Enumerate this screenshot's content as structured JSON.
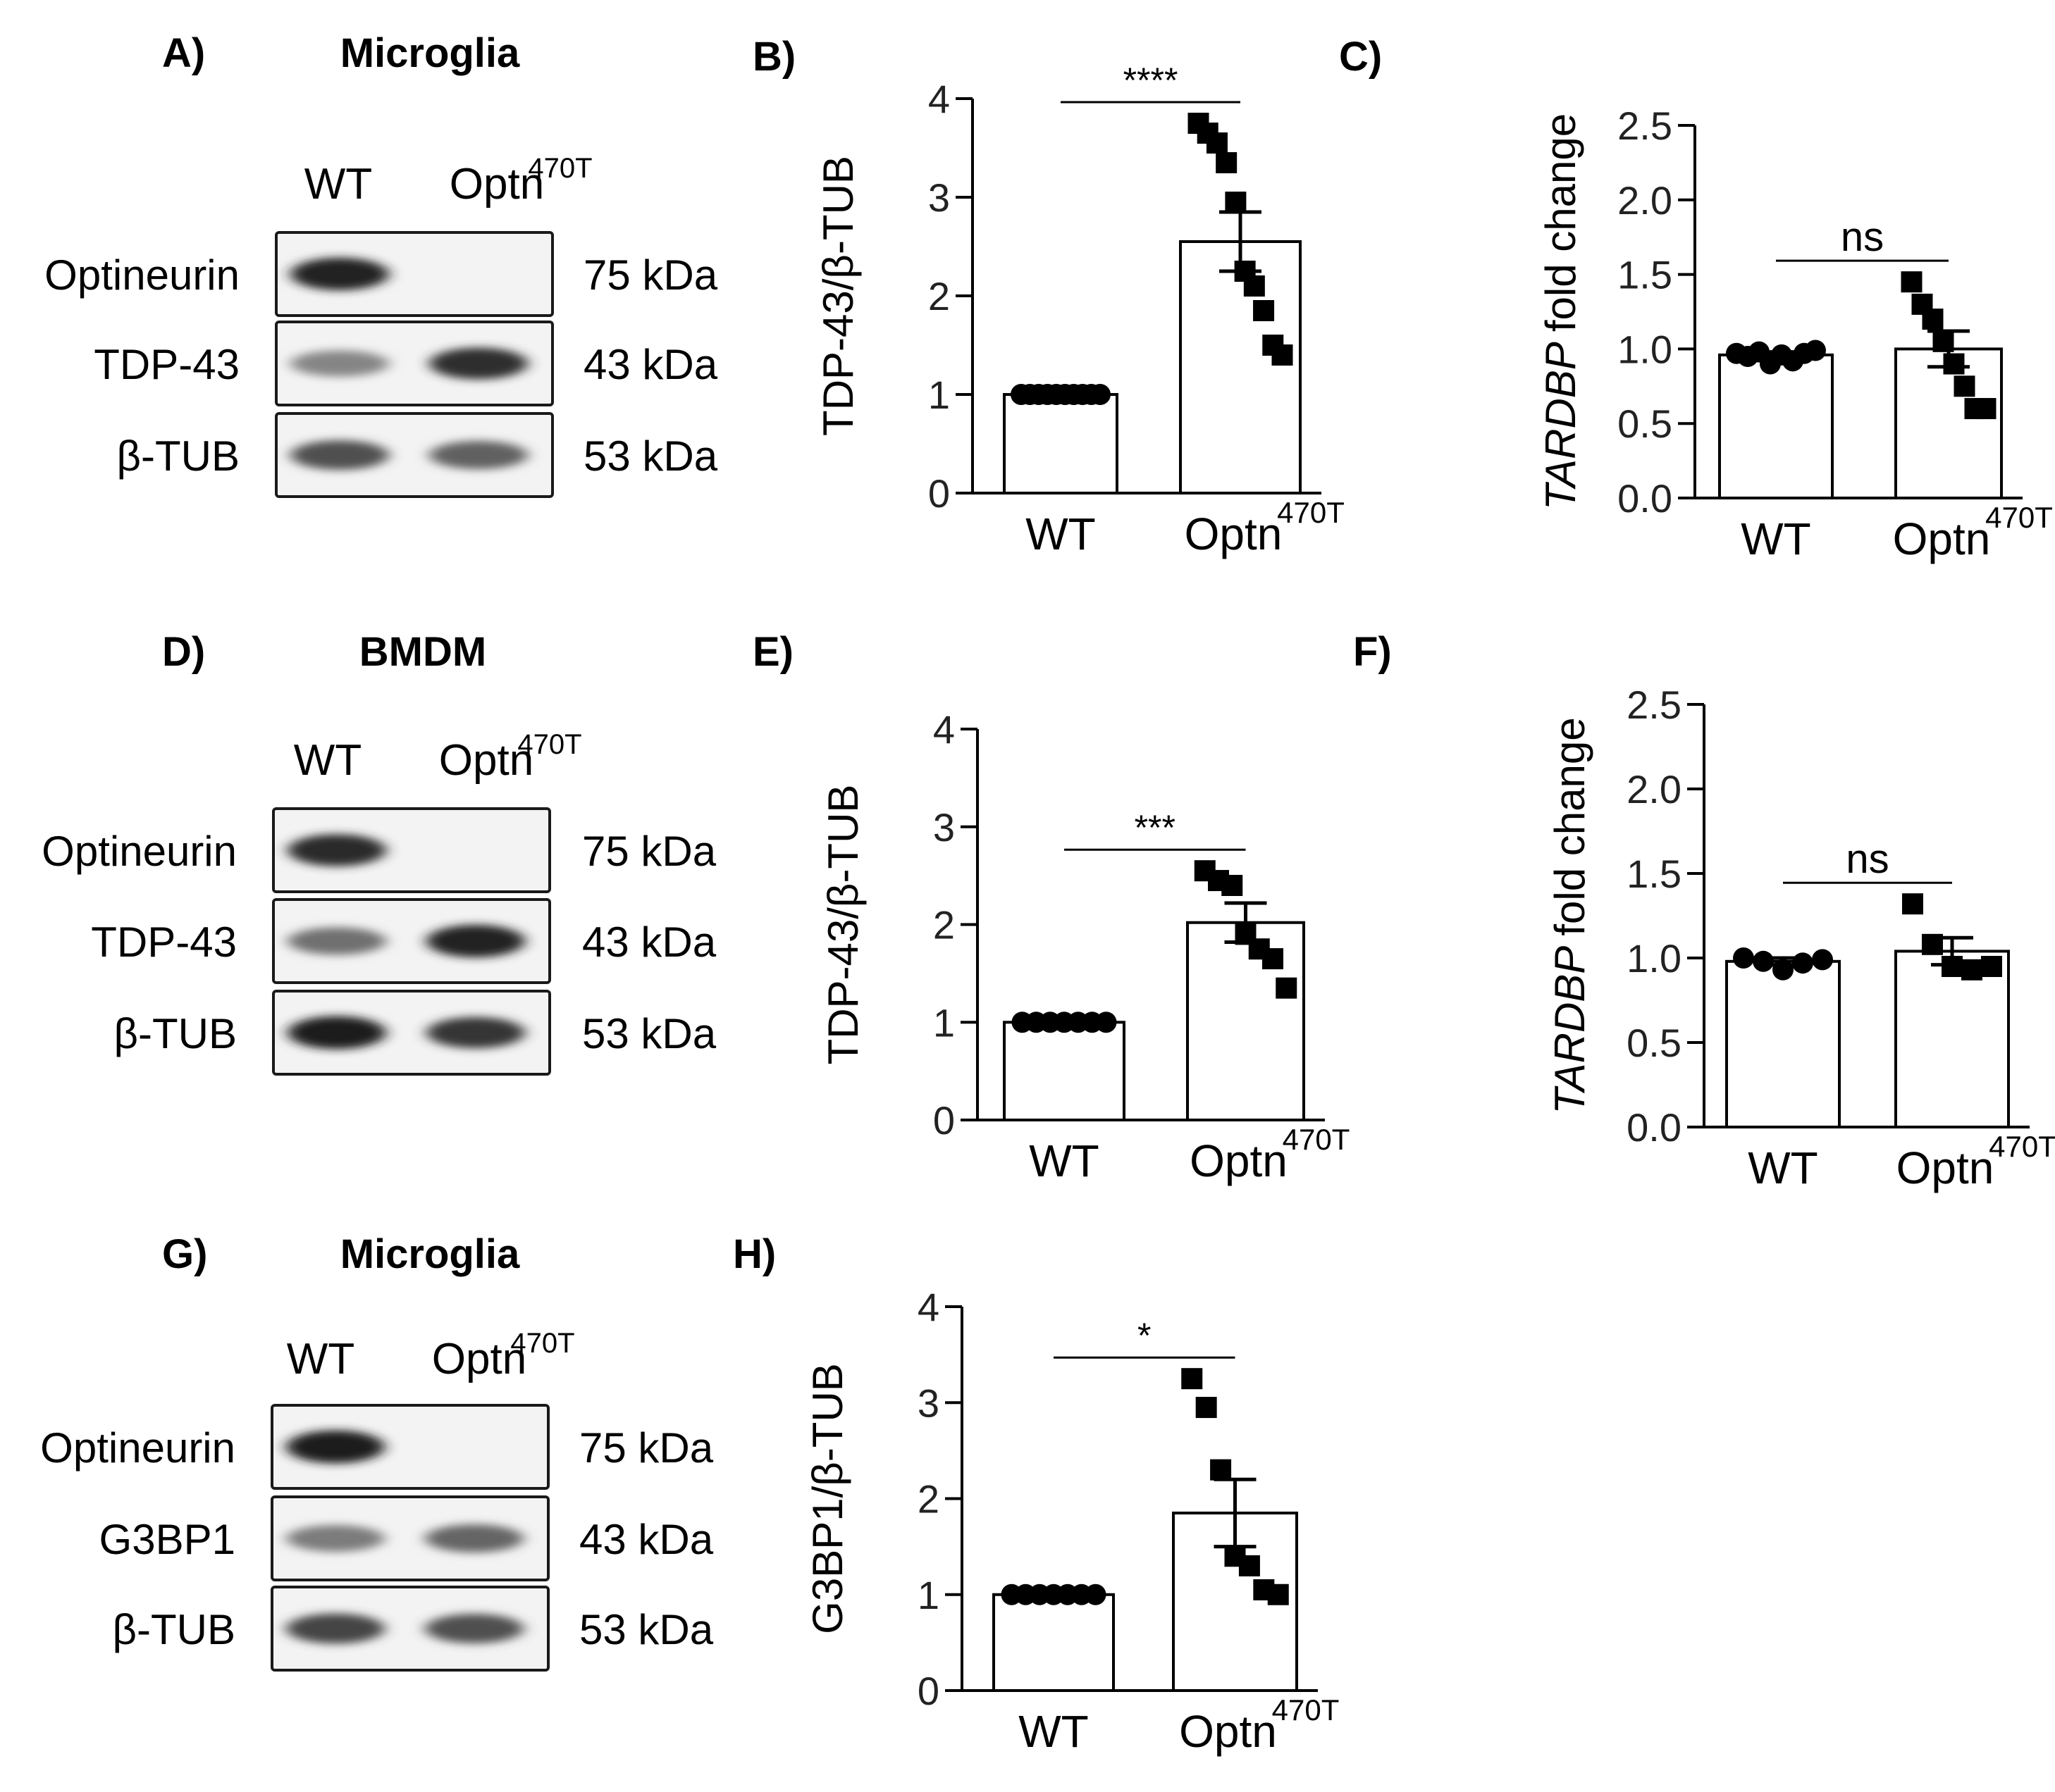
{
  "blots": [
    {
      "panel": "A)",
      "title": "Microglia",
      "lanes": [
        "WT",
        "Optn",
        "470T"
      ],
      "rows": [
        {
          "protein": "Optineurin",
          "weight": "75 kDa",
          "intensity": [
            0.92,
            0.0
          ]
        },
        {
          "protein": "TDP-43",
          "weight": "43 kDa",
          "intensity": [
            0.45,
            0.85
          ]
        },
        {
          "protein": "β-TUB",
          "weight": "53 kDa",
          "intensity": [
            0.7,
            0.62
          ]
        }
      ]
    },
    {
      "panel": "D)",
      "title": "BMDM",
      "lanes": [
        "WT",
        "Optn",
        "470T"
      ],
      "rows": [
        {
          "protein": "Optineurin",
          "weight": "75 kDa",
          "intensity": [
            0.88,
            0.0
          ]
        },
        {
          "protein": "TDP-43",
          "weight": "43 kDa",
          "intensity": [
            0.55,
            0.92
          ]
        },
        {
          "protein": "β-TUB",
          "weight": "53 kDa",
          "intensity": [
            0.95,
            0.82
          ]
        }
      ]
    },
    {
      "panel": "G)",
      "title": "Microglia",
      "lanes": [
        "WT",
        "Optn",
        "470T"
      ],
      "rows": [
        {
          "protein": "Optineurin",
          "weight": "75 kDa",
          "intensity": [
            0.95,
            0.0
          ]
        },
        {
          "protein": "G3BP1",
          "weight": "43 kDa",
          "intensity": [
            0.5,
            0.6
          ]
        },
        {
          "protein": "β-TUB",
          "weight": "53 kDa",
          "intensity": [
            0.75,
            0.7
          ]
        }
      ]
    }
  ],
  "chart_data": [
    {
      "panel": "B)",
      "type": "bar",
      "ylabel": "TDP-43/β-TUB",
      "ylabel_italic": "",
      "ylim": [
        0,
        4
      ],
      "yticks": [
        "0",
        "1",
        "2",
        "3",
        "4"
      ],
      "categories": [
        "WT",
        "Optn",
        "470T"
      ],
      "bars": [
        {
          "mean": 1.0,
          "sem": 0.0,
          "points": [
            1.0,
            1.0,
            1.0,
            1.0,
            1.0,
            1.0,
            1.0,
            1.0,
            1.0,
            1.0
          ],
          "marker": "circle"
        },
        {
          "mean": 2.55,
          "sem": 0.3,
          "points": [
            3.75,
            3.65,
            3.55,
            3.35,
            2.95,
            2.25,
            2.1,
            1.85,
            1.5,
            1.4
          ],
          "marker": "square"
        }
      ],
      "significance": "****",
      "tick_color": "#222222"
    },
    {
      "panel": "C)",
      "type": "bar",
      "ylabel": "fold change",
      "ylabel_italic": "TARDBP",
      "ylim": [
        0,
        2.5
      ],
      "yticks": [
        "0.0",
        "0.5",
        "1.0",
        "1.5",
        "2.0",
        "2.5"
      ],
      "categories": [
        "WT",
        "Optn",
        "470T"
      ],
      "bars": [
        {
          "mean": 0.96,
          "sem": 0.02,
          "points": [
            0.97,
            0.95,
            0.98,
            0.9,
            0.96,
            0.92,
            0.97,
            0.99
          ],
          "marker": "circle"
        },
        {
          "mean": 1.0,
          "sem": 0.12,
          "points": [
            1.45,
            1.3,
            1.2,
            1.05,
            0.9,
            0.75,
            0.6,
            0.6
          ],
          "marker": "square"
        }
      ],
      "significance": "ns",
      "tick_color": "#222222"
    },
    {
      "panel": "E)",
      "type": "bar",
      "ylabel": "TDP-43/β-TUB",
      "ylabel_italic": "",
      "ylim": [
        0,
        4
      ],
      "yticks": [
        "0",
        "1",
        "2",
        "3",
        "4"
      ],
      "categories": [
        "WT",
        "Optn",
        "470T"
      ],
      "bars": [
        {
          "mean": 1.0,
          "sem": 0.0,
          "points": [
            1.0,
            1.0,
            1.0,
            1.0,
            1.0,
            1.0,
            1.0
          ],
          "marker": "circle"
        },
        {
          "mean": 2.02,
          "sem": 0.2,
          "points": [
            2.55,
            2.45,
            2.4,
            1.9,
            1.75,
            1.65,
            1.35
          ],
          "marker": "square"
        }
      ],
      "significance": "***",
      "tick_color": "#222222"
    },
    {
      "panel": "F)",
      "type": "bar",
      "ylabel": "fold change",
      "ylabel_italic": "TARDBP",
      "ylim": [
        0,
        2.5
      ],
      "yticks": [
        "0.0",
        "0.5",
        "1.0",
        "1.5",
        "2.0",
        "2.5"
      ],
      "categories": [
        "WT",
        "Optn",
        "470T"
      ],
      "bars": [
        {
          "mean": 0.98,
          "sem": 0.02,
          "points": [
            1.0,
            0.98,
            0.93,
            0.97,
            0.99
          ],
          "marker": "circle"
        },
        {
          "mean": 1.04,
          "sem": 0.08,
          "points": [
            1.32,
            1.08,
            0.95,
            0.93,
            0.95
          ],
          "marker": "square"
        }
      ],
      "significance": "ns",
      "tick_color": "#222222"
    },
    {
      "panel": "H)",
      "type": "bar",
      "ylabel": "G3BP1/β-TUB",
      "ylabel_italic": "",
      "ylim": [
        0,
        4
      ],
      "yticks": [
        "0",
        "1",
        "2",
        "3",
        "4"
      ],
      "categories": [
        "WT",
        "Optn",
        "470T"
      ],
      "bars": [
        {
          "mean": 1.0,
          "sem": 0.0,
          "points": [
            1.0,
            1.0,
            1.0,
            1.0,
            1.0,
            1.0,
            1.0
          ],
          "marker": "circle"
        },
        {
          "mean": 1.85,
          "sem": 0.35,
          "points": [
            3.25,
            2.95,
            2.3,
            1.4,
            1.3,
            1.05,
            1.0
          ],
          "marker": "square"
        }
      ],
      "significance": "*",
      "tick_color": "#222222"
    }
  ]
}
